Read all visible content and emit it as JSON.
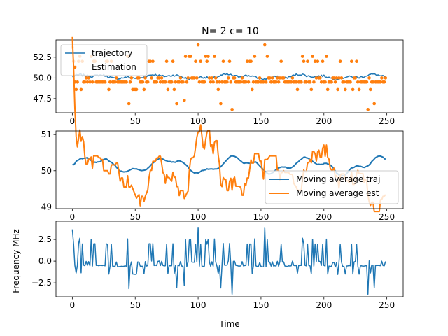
{
  "figure": {
    "title": "N= 2 c= 10",
    "xlabel": "Time"
  },
  "colors": {
    "blue": "#1f77b4",
    "orange": "#ff7f0e"
  },
  "chart_data": [
    {
      "type": "line+scatter",
      "title": "N= 2 c= 10",
      "xlabel": "",
      "ylabel": "",
      "xlim": [
        -13,
        263
      ],
      "ylim": [
        45.8,
        54.6
      ],
      "xticks": [
        0,
        50,
        100,
        150,
        200,
        250
      ],
      "yticks": [
        47.5,
        50.0,
        52.5
      ],
      "ytick_labels": [
        "47.5",
        "50.0",
        "52.5"
      ],
      "legend": {
        "placement": "top-left",
        "entries": [
          "trajectory",
          "Estimation"
        ]
      },
      "series": [
        {
          "name": "trajectory",
          "kind": "line",
          "color": "#1f77b4",
          "x_start": 0,
          "x_step": 1,
          "values": []
        },
        {
          "name": "Estimation",
          "kind": "scatter",
          "color": "#ff7f0e",
          "x_start": 0,
          "x_step": 1,
          "values": []
        }
      ]
    },
    {
      "type": "line",
      "xlabel": "",
      "ylabel": "",
      "xlim": [
        -13,
        263
      ],
      "ylim": [
        48.95,
        51.1
      ],
      "xticks": [
        0,
        50,
        100,
        150,
        200,
        250
      ],
      "yticks": [
        49,
        50,
        51
      ],
      "ytick_labels": [
        "49",
        "50",
        "51"
      ],
      "legend": {
        "placement": "lower-right",
        "entries": [
          "Moving average traj",
          "Moving average est"
        ]
      },
      "series": [
        {
          "name": "Moving average traj",
          "color": "#1f77b4",
          "x_start": 0,
          "x_step": 1,
          "values": []
        },
        {
          "name": "Moving average est",
          "color": "#ff7f0e",
          "x_start": 0,
          "x_step": 1,
          "values": []
        }
      ]
    },
    {
      "type": "line",
      "xlabel": "Time",
      "ylabel": "Frequency MHz",
      "xlim": [
        -13,
        263
      ],
      "ylim": [
        -4.1,
        4.6
      ],
      "xticks": [
        0,
        50,
        100,
        150,
        200,
        250
      ],
      "yticks": [
        -2.5,
        0.0,
        2.5
      ],
      "ytick_labels": [
        "−2.5",
        "0.0",
        "2.5"
      ],
      "series": [
        {
          "name": "",
          "color": "#1f77b4",
          "x_start": 0,
          "x_step": 1,
          "values": []
        }
      ]
    }
  ]
}
